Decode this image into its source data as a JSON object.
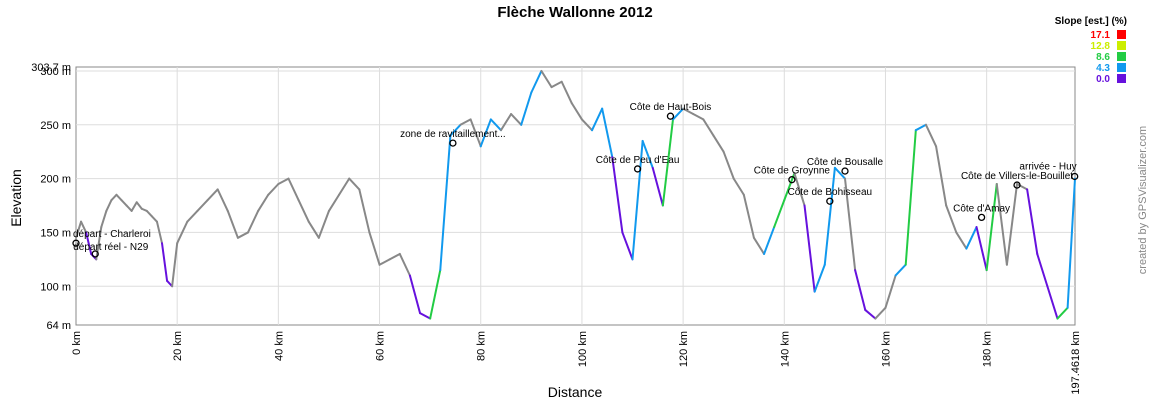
{
  "chart_data": {
    "type": "line",
    "title": "Flèche Wallonne 2012",
    "xlabel": "Distance",
    "ylabel": "Elevation",
    "xlim": [
      0,
      197.4618
    ],
    "ylim": [
      64,
      303.7
    ],
    "x_ticks": [
      "0 km",
      "20 km",
      "40 km",
      "60 km",
      "80 km",
      "100 km",
      "120 km",
      "140 km",
      "160 km",
      "180 km",
      "197.4618 km"
    ],
    "y_ticks": [
      "303.7 m",
      "300 m",
      "250 m",
      "200 m",
      "150 m",
      "100 m",
      "64 m"
    ],
    "grid": true,
    "legend": {
      "title": "Slope [est.] (%)",
      "placement": "top-right",
      "entries": [
        {
          "label": "17.1",
          "color": "#ff0000"
        },
        {
          "label": "12.8",
          "color": "#ccee00"
        },
        {
          "label": "8.6",
          "color": "#22cc44"
        },
        {
          "label": "4.3",
          "color": "#1199ee"
        },
        {
          "label": "0.0",
          "color": "#6611dd"
        }
      ]
    },
    "credit": "created by GPSVisualizer.com",
    "series": [
      {
        "x": [
          0,
          1,
          2,
          3,
          4,
          5,
          6,
          7,
          8,
          9,
          10,
          11,
          12,
          13,
          14,
          15,
          16,
          17,
          18,
          19,
          20,
          22,
          24,
          26,
          28,
          30,
          32,
          34,
          36,
          38,
          40,
          42,
          44,
          46,
          48,
          50,
          52,
          54,
          56,
          58,
          60,
          62,
          64,
          66,
          68,
          70,
          72,
          74,
          76,
          78,
          80,
          82,
          84,
          86,
          88,
          90,
          92,
          94,
          96,
          98,
          100,
          102,
          104,
          106,
          108,
          110,
          112,
          114,
          116,
          118,
          120,
          122,
          124,
          126,
          128,
          130,
          132,
          134,
          136,
          138,
          140,
          142,
          144,
          146,
          148,
          150,
          152,
          154,
          156,
          158,
          160,
          162,
          164,
          166,
          168,
          170,
          172,
          174,
          176,
          178,
          180,
          182,
          184,
          186,
          188,
          190,
          192,
          194,
          196,
          197.46
        ],
        "y": [
          145,
          160,
          150,
          130,
          125,
          155,
          170,
          180,
          185,
          180,
          175,
          170,
          178,
          172,
          170,
          165,
          160,
          140,
          105,
          100,
          140,
          160,
          170,
          180,
          190,
          170,
          145,
          150,
          170,
          185,
          195,
          200,
          180,
          160,
          145,
          170,
          185,
          200,
          190,
          150,
          120,
          125,
          130,
          110,
          75,
          70,
          115,
          240,
          250,
          255,
          230,
          255,
          245,
          260,
          250,
          280,
          300,
          285,
          290,
          270,
          255,
          245,
          265,
          220,
          150,
          125,
          235,
          210,
          175,
          255,
          265,
          260,
          255,
          240,
          225,
          200,
          185,
          145,
          130,
          155,
          180,
          205,
          175,
          95,
          120,
          210,
          200,
          115,
          78,
          70,
          80,
          110,
          120,
          245,
          250,
          230,
          175,
          150,
          135,
          155,
          115,
          195,
          120,
          195,
          190,
          130,
          100,
          70,
          80,
          200
        ],
        "slope": [
          4,
          4,
          4,
          0,
          0,
          4,
          4,
          4,
          4,
          4,
          4,
          4,
          4,
          4,
          4,
          4,
          4,
          4,
          0,
          0,
          4,
          4,
          4,
          4,
          4,
          4,
          4,
          4,
          4,
          4,
          4,
          4,
          4,
          4,
          4,
          4,
          4,
          4,
          4,
          4,
          4,
          4,
          4,
          4,
          0,
          0,
          2,
          3,
          3,
          4,
          4,
          3,
          3,
          4,
          4,
          3,
          3,
          4,
          4,
          4,
          4,
          4,
          3,
          3,
          0,
          0,
          1,
          1,
          0,
          2,
          3,
          4,
          4,
          4,
          4,
          4,
          4,
          4,
          4,
          3,
          2,
          2,
          4,
          0,
          1,
          1,
          3,
          4,
          0,
          0,
          4,
          4,
          3,
          2,
          3,
          4,
          4,
          4,
          4,
          1,
          0,
          2,
          4,
          4,
          4,
          0,
          0,
          0,
          2,
          1
        ]
      }
    ],
    "waypoints": [
      {
        "x": 0,
        "y": 140,
        "label": "départ - Charleroi"
      },
      {
        "x": 3.8,
        "y": 130,
        "label": "départ réel - N29"
      },
      {
        "x": 74.5,
        "y": 233,
        "label": "zone de ravitaillement..."
      },
      {
        "x": 111,
        "y": 209,
        "label": "Côte de Peu d'Eau"
      },
      {
        "x": 117.5,
        "y": 258,
        "label": "Côte de Haut-Bois"
      },
      {
        "x": 141.5,
        "y": 199,
        "label": "Côte de Groynne"
      },
      {
        "x": 149,
        "y": 179,
        "label": "Côte de Bohisseau"
      },
      {
        "x": 152,
        "y": 207,
        "label": "Côte de Bousalle"
      },
      {
        "x": 179,
        "y": 164,
        "label": "Côte d'Amay"
      },
      {
        "x": 186,
        "y": 194,
        "label": "Côte de Villers-le-Bouillet"
      },
      {
        "x": 197.4,
        "y": 202,
        "label": "arrivée - Huy"
      }
    ]
  }
}
